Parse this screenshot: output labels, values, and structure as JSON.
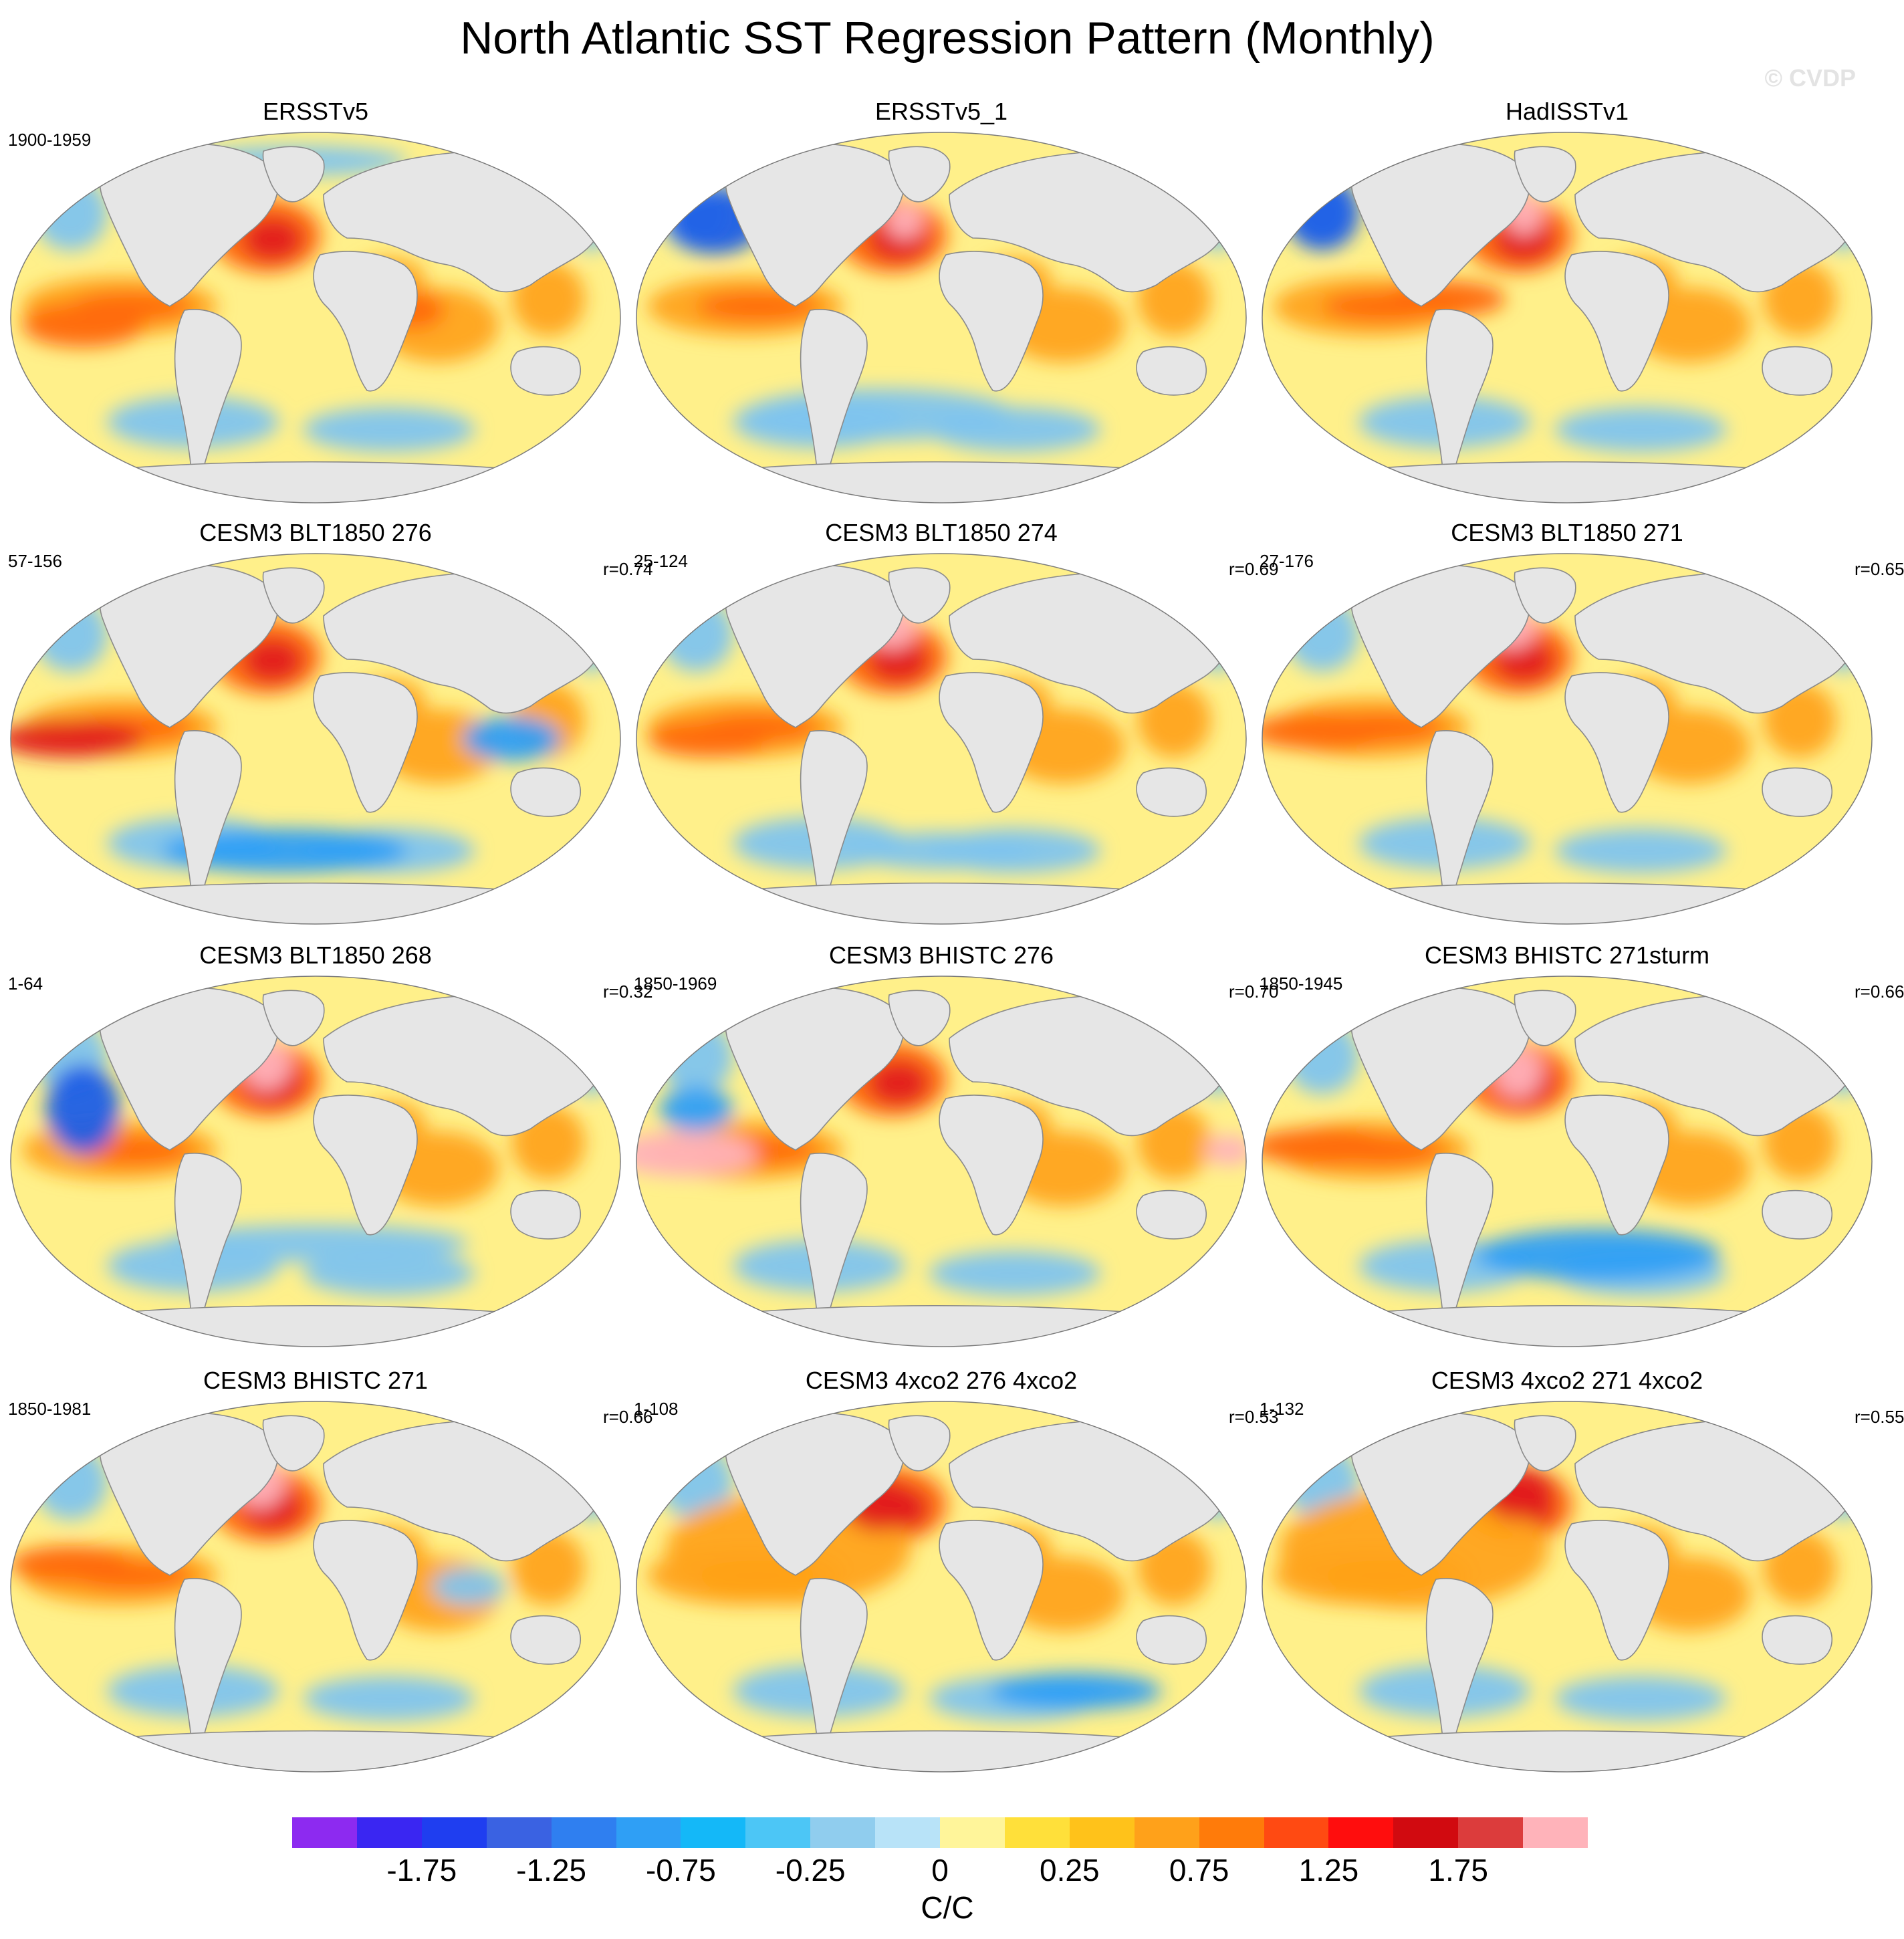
{
  "title": "North Atlantic SST Regression Pattern (Monthly)",
  "credit": "© CVDP",
  "colors": {
    "ocean_base": "#fff08a",
    "land": "#e6e6e6",
    "coast": "#8a8a8a",
    "warm": "#ffa41a",
    "hot": "#ff6a0a",
    "hotter": "#e21f1f",
    "hottest": "#ffb3ba",
    "cool": "#7fc4ee",
    "cold": "#2f9ff5",
    "colder": "#1f5ee6"
  },
  "panels": [
    {
      "title": "ERSSTv5",
      "period": "1900-1959",
      "r": ""
    },
    {
      "title": "ERSSTv5_1",
      "period": "",
      "r": ""
    },
    {
      "title": "HadISSTv1",
      "period": "",
      "r": ""
    },
    {
      "title": "CESM3 BLT1850 276",
      "period": "57-156",
      "r": "r=0.74"
    },
    {
      "title": "CESM3 BLT1850 274",
      "period": "25-124",
      "r": "r=0.69"
    },
    {
      "title": "CESM3 BLT1850 271",
      "period": "27-176",
      "r": "r=0.65"
    },
    {
      "title": "CESM3 BLT1850 268",
      "period": "1-64",
      "r": "r=0.32"
    },
    {
      "title": "CESM3 BHISTC 276",
      "period": "1850-1969",
      "r": "r=0.70"
    },
    {
      "title": "CESM3 BHISTC 271sturm",
      "period": "1850-1945",
      "r": "r=0.66"
    },
    {
      "title": "CESM3 BHISTC 271",
      "period": "1850-1981",
      "r": "r=0.66"
    },
    {
      "title": "CESM3 4xco2 276 4xco2",
      "period": "1-108",
      "r": "r=0.53"
    },
    {
      "title": "CESM3 4xco2 271 4xco2",
      "period": "1-132",
      "r": "r=0.55"
    }
  ],
  "colorbar": {
    "colors": [
      "#8d2af0",
      "#3a26f2",
      "#1f3ef0",
      "#3a62e2",
      "#2f7ff0",
      "#2f9ff5",
      "#14b8f8",
      "#4cc6f6",
      "#90cdee",
      "#b8e3f8",
      "#fff59a",
      "#ffe03a",
      "#ffc21a",
      "#ffa11a",
      "#ff7b0a",
      "#ff4a12",
      "#ff0d0d",
      "#d10a10",
      "#dc3c3c",
      "#ffb3ba"
    ],
    "labels": [
      "-1.75",
      "-1.25",
      "-0.75",
      "-0.25",
      "0",
      "0.25",
      "0.75",
      "1.25",
      "1.75"
    ],
    "units": "C/C"
  }
}
